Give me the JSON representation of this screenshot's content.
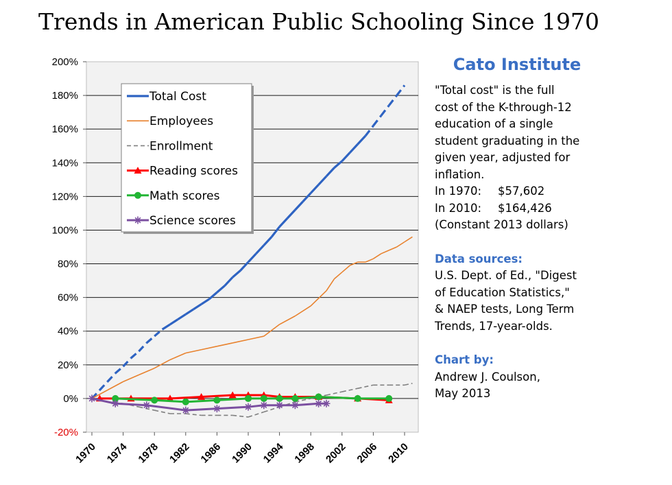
{
  "title": "Trends in American Public Schooling Since 1970",
  "side": {
    "org": "Cato Institute",
    "desc_lines": [
      "\"Total cost\" is the full",
      "cost of the K-through-12",
      "education of a single",
      "student graduating in the",
      "given year, adjusted for",
      "inflation."
    ],
    "amount_1970_label": "In 1970:",
    "amount_1970_value": "$57,602",
    "amount_2010_label": "In 2010:",
    "amount_2010_value": "$164,426",
    "amount_note": "(Constant 2013 dollars)",
    "sources_heading": "Data sources:",
    "sources_lines": [
      "U.S. Dept. of Ed., \"Digest",
      "of Education Statistics,\"",
      "& NAEP tests, Long Term",
      "Trends, 17-year-olds."
    ],
    "chartby_heading": "Chart by:",
    "chartby_lines": [
      "Andrew J. Coulson,",
      "May 2013"
    ]
  },
  "chart_data": {
    "type": "line",
    "ylim": [
      -20,
      200
    ],
    "xlim": [
      1970,
      2012
    ],
    "y_ticks": [
      "-20%",
      "0%",
      "20%",
      "40%",
      "60%",
      "80%",
      "100%",
      "120%",
      "140%",
      "160%",
      "180%",
      "200%"
    ],
    "x_ticks": [
      "1970",
      "1974",
      "1978",
      "1982",
      "1986",
      "1990",
      "1994",
      "1998",
      "2002",
      "2006",
      "2010"
    ],
    "grid": "horizontal",
    "legend_position": "top-left",
    "series": [
      {
        "name": "Total Cost",
        "color": "#2e63c2",
        "style": "solid-dashed",
        "marker": "none",
        "points": [
          [
            1970,
            0
          ],
          [
            1971,
            5
          ],
          [
            1972,
            10
          ],
          [
            1973,
            15
          ],
          [
            1974,
            19
          ],
          [
            1975,
            24
          ],
          [
            1976,
            28
          ],
          [
            1977,
            33
          ],
          [
            1978,
            37
          ],
          [
            1979,
            41
          ],
          [
            1980,
            44
          ],
          [
            1981,
            47
          ],
          [
            1982,
            50
          ],
          [
            1983,
            53
          ],
          [
            1984,
            56
          ],
          [
            1985,
            59
          ],
          [
            1986,
            63
          ],
          [
            1987,
            67
          ],
          [
            1988,
            72
          ],
          [
            1989,
            76
          ],
          [
            1990,
            81
          ],
          [
            1991,
            86
          ],
          [
            1992,
            91
          ],
          [
            1993,
            96
          ],
          [
            1994,
            102
          ],
          [
            1995,
            107
          ],
          [
            1996,
            112
          ],
          [
            1997,
            117
          ],
          [
            1998,
            122
          ],
          [
            1999,
            127
          ],
          [
            2000,
            132
          ],
          [
            2001,
            137
          ],
          [
            2002,
            141
          ],
          [
            2003,
            146
          ],
          [
            2004,
            151
          ],
          [
            2005,
            156
          ],
          [
            2006,
            162
          ],
          [
            2007,
            168
          ],
          [
            2008,
            174
          ],
          [
            2009,
            180
          ],
          [
            2010,
            186
          ]
        ],
        "dashed_ranges": [
          [
            1970,
            1979
          ],
          [
            2005,
            2010
          ]
        ]
      },
      {
        "name": "Employees",
        "color": "#e8822e",
        "style": "solid",
        "marker": "none",
        "points": [
          [
            1970,
            0
          ],
          [
            1972,
            5
          ],
          [
            1974,
            10
          ],
          [
            1976,
            14
          ],
          [
            1978,
            18
          ],
          [
            1980,
            23
          ],
          [
            1982,
            27
          ],
          [
            1984,
            29
          ],
          [
            1986,
            31
          ],
          [
            1988,
            33
          ],
          [
            1990,
            35
          ],
          [
            1992,
            37
          ],
          [
            1994,
            44
          ],
          [
            1996,
            49
          ],
          [
            1998,
            55
          ],
          [
            2000,
            64
          ],
          [
            2001,
            71
          ],
          [
            2002,
            75
          ],
          [
            2003,
            79
          ],
          [
            2004,
            81
          ],
          [
            2005,
            81
          ],
          [
            2006,
            83
          ],
          [
            2007,
            86
          ],
          [
            2008,
            88
          ],
          [
            2009,
            90
          ],
          [
            2010,
            93
          ],
          [
            2011,
            96
          ]
        ]
      },
      {
        "name": "Enrollment",
        "color": "#7f7f7f",
        "style": "dashed",
        "marker": "none",
        "points": [
          [
            1970,
            0
          ],
          [
            1972,
            -2
          ],
          [
            1974,
            -3
          ],
          [
            1976,
            -5
          ],
          [
            1978,
            -7
          ],
          [
            1980,
            -9
          ],
          [
            1982,
            -9
          ],
          [
            1984,
            -10
          ],
          [
            1986,
            -10
          ],
          [
            1988,
            -10
          ],
          [
            1990,
            -11
          ],
          [
            1992,
            -8
          ],
          [
            1994,
            -5
          ],
          [
            1996,
            -2
          ],
          [
            1998,
            0
          ],
          [
            2000,
            2
          ],
          [
            2002,
            4
          ],
          [
            2004,
            6
          ],
          [
            2006,
            8
          ],
          [
            2008,
            8
          ],
          [
            2010,
            8
          ],
          [
            2011,
            9
          ]
        ]
      },
      {
        "name": "Reading scores",
        "color": "#ff0000",
        "style": "solid",
        "marker": "triangle",
        "points": [
          [
            1971,
            0
          ],
          [
            1975,
            0
          ],
          [
            1980,
            0
          ],
          [
            1984,
            1
          ],
          [
            1988,
            2
          ],
          [
            1990,
            2
          ],
          [
            1992,
            2
          ],
          [
            1994,
            1
          ],
          [
            1996,
            1
          ],
          [
            1999,
            1
          ],
          [
            2004,
            0
          ],
          [
            2008,
            -1
          ]
        ]
      },
      {
        "name": "Math scores",
        "color": "#22b534",
        "style": "solid",
        "marker": "circle",
        "points": [
          [
            1973,
            0
          ],
          [
            1978,
            -1
          ],
          [
            1982,
            -2
          ],
          [
            1986,
            -1
          ],
          [
            1990,
            0
          ],
          [
            1992,
            0
          ],
          [
            1994,
            0
          ],
          [
            1996,
            0
          ],
          [
            1999,
            1
          ],
          [
            2004,
            0
          ],
          [
            2008,
            0
          ]
        ]
      },
      {
        "name": "Science scores",
        "color": "#7b4fa0",
        "style": "solid",
        "marker": "asterisk",
        "points": [
          [
            1970,
            0
          ],
          [
            1973,
            -3
          ],
          [
            1977,
            -4
          ],
          [
            1982,
            -7
          ],
          [
            1986,
            -6
          ],
          [
            1990,
            -5
          ],
          [
            1992,
            -4
          ],
          [
            1994,
            -4
          ],
          [
            1996,
            -4
          ],
          [
            1999,
            -3
          ],
          [
            2000,
            -3
          ]
        ]
      }
    ]
  }
}
